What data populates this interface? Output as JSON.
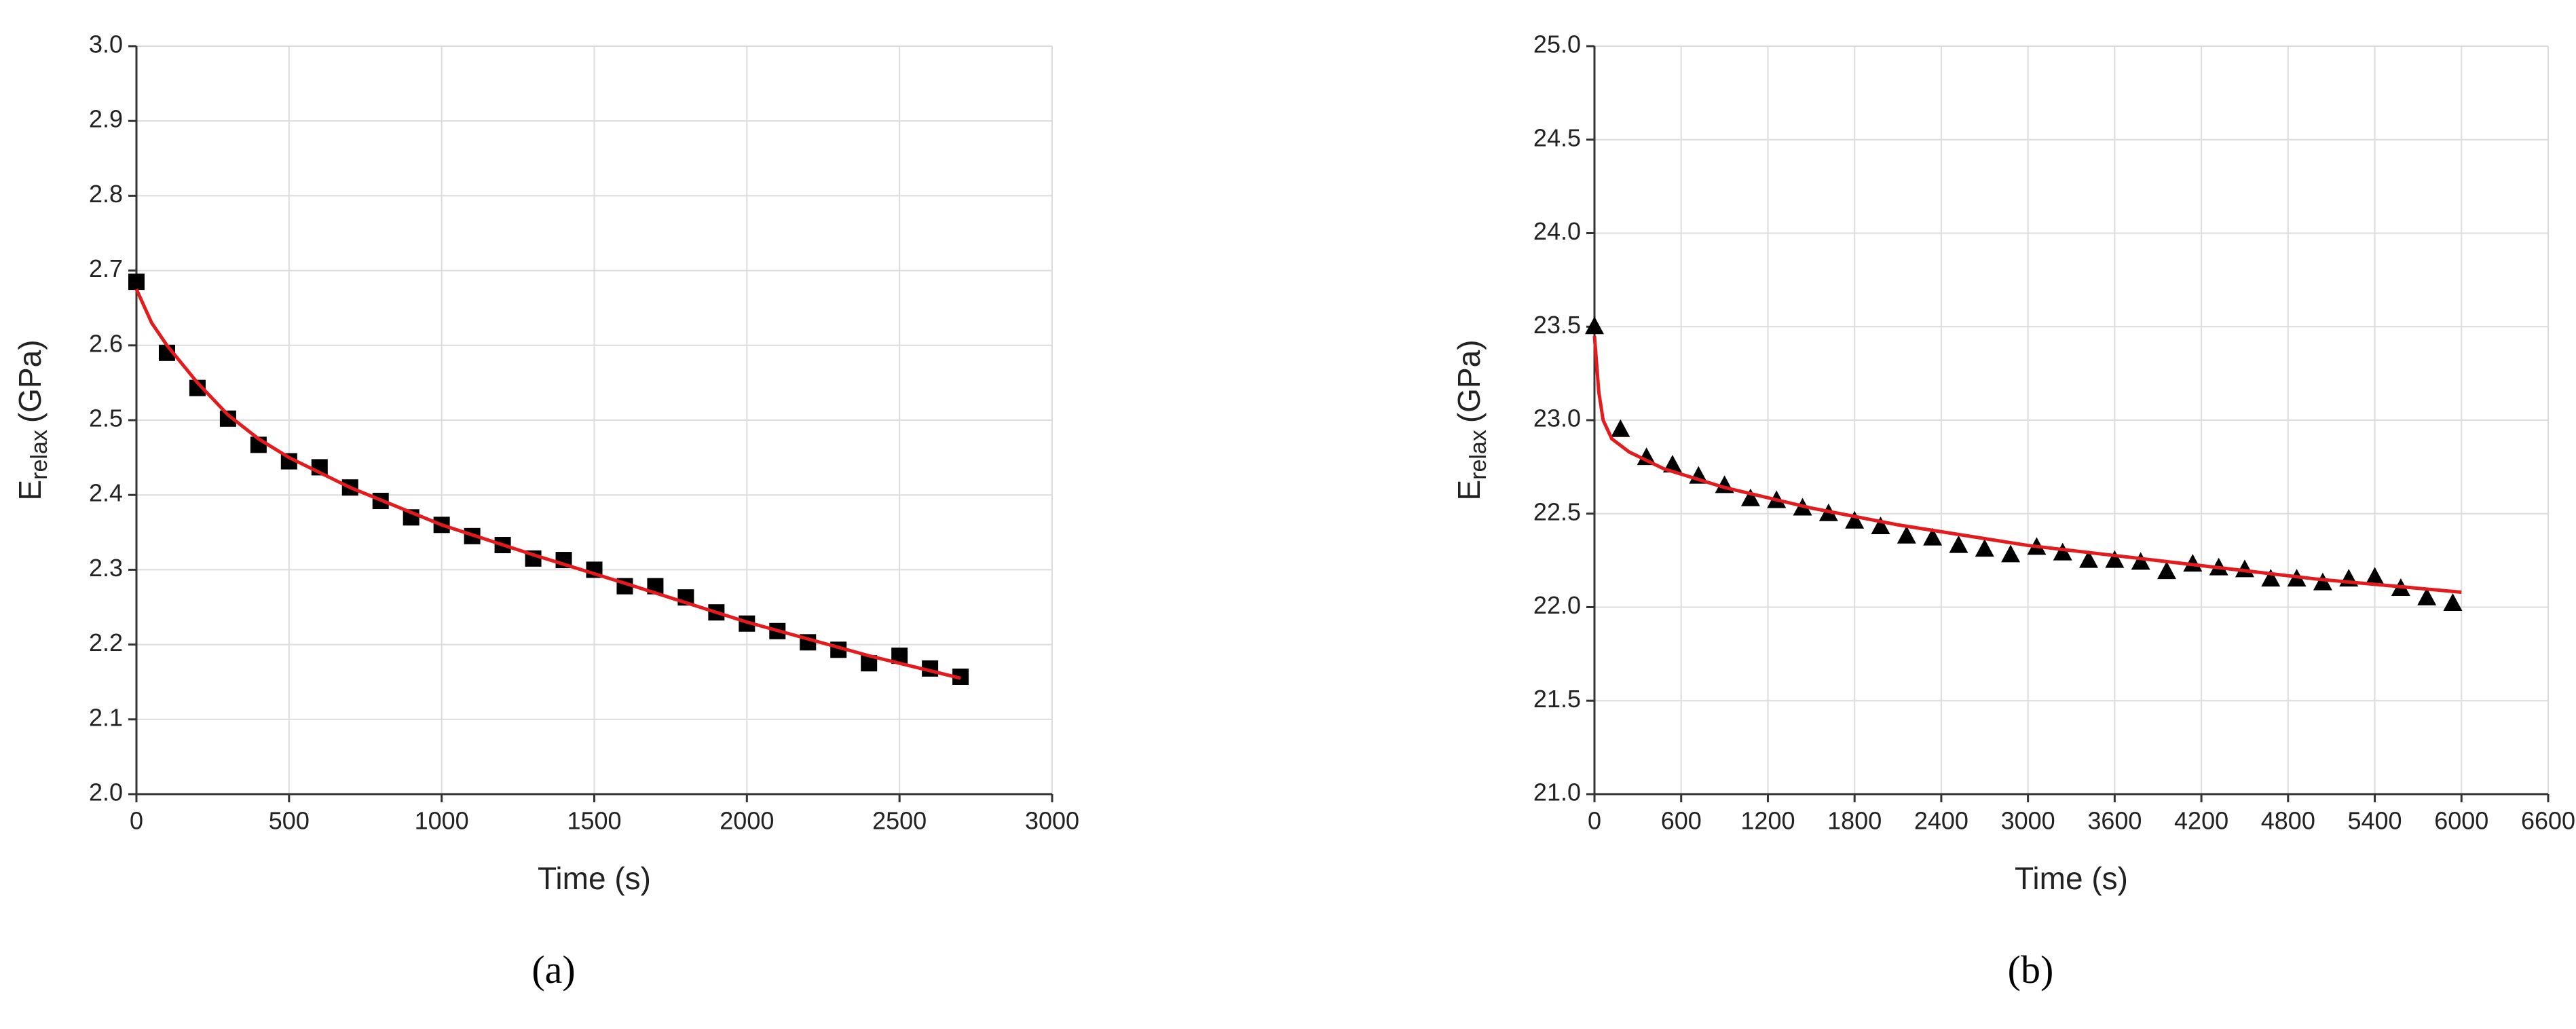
{
  "chart_data": [
    {
      "type": "scatter",
      "xlabel": "Time (s)",
      "ylabel": {
        "base": "E",
        "subscript": "relax",
        "unit": "(GPa)"
      },
      "panel_label": "(a)",
      "xlim": [
        0,
        3000
      ],
      "xticks": [
        0,
        500,
        1000,
        1500,
        2000,
        2500,
        3000
      ],
      "ylim": [
        2.0,
        3.0
      ],
      "yticks": [
        {
          "value": 2.0,
          "label": "2.0"
        },
        2.1,
        2.2,
        2.3,
        2.4,
        2.5,
        2.6,
        2.7,
        2.8,
        2.9,
        {
          "value": 3.0,
          "label": "3.0"
        }
      ],
      "grid": true,
      "series": [
        {
          "type": "scatter",
          "marker": "square",
          "color": "#000000",
          "x": [
            0,
            100,
            200,
            300,
            400,
            500,
            600,
            700,
            800,
            900,
            1000,
            1100,
            1200,
            1300,
            1400,
            1500,
            1600,
            1700,
            1800,
            1900,
            2000,
            2100,
            2200,
            2300,
            2400,
            2500,
            2600,
            2700
          ],
          "values": [
            2.685,
            2.59,
            2.543,
            2.502,
            2.467,
            2.445,
            2.437,
            2.41,
            2.392,
            2.37,
            2.36,
            2.345,
            2.333,
            2.315,
            2.313,
            2.3,
            2.278,
            2.278,
            2.263,
            2.243,
            2.228,
            2.218,
            2.203,
            2.193,
            2.175,
            2.185,
            2.168,
            2.157
          ]
        },
        {
          "type": "line",
          "color": "#e41a1c",
          "x": [
            0,
            50,
            100,
            200,
            300,
            400,
            500,
            700,
            1000,
            1300,
            1600,
            2000,
            2400,
            2700
          ],
          "values": [
            2.675,
            2.63,
            2.6,
            2.55,
            2.507,
            2.475,
            2.45,
            2.41,
            2.36,
            2.32,
            2.282,
            2.23,
            2.185,
            2.155
          ]
        }
      ]
    },
    {
      "type": "scatter",
      "xlabel": "Time (s)",
      "ylabel": {
        "base": "E",
        "subscript": "relax",
        "unit": "(GPa)"
      },
      "panel_label": "(b)",
      "xlim": [
        0,
        6600
      ],
      "xticks": [
        0,
        600,
        1200,
        1800,
        2400,
        3000,
        3600,
        4200,
        4800,
        5400,
        6000,
        6600
      ],
      "ylim": [
        21.0,
        25.0
      ],
      "yticks": [
        {
          "value": 21.0,
          "label": "21.0"
        },
        21.5,
        {
          "value": 22.0,
          "label": "22.0"
        },
        22.5,
        {
          "value": 23.0,
          "label": "23.0"
        },
        23.5,
        {
          "value": 24.0,
          "label": "24.0"
        },
        24.5,
        {
          "value": 25.0,
          "label": "25.0"
        }
      ],
      "grid": true,
      "series": [
        {
          "type": "scatter",
          "marker": "triangle",
          "color": "#000000",
          "x": [
            0,
            180,
            360,
            540,
            720,
            900,
            1080,
            1260,
            1440,
            1620,
            1800,
            1980,
            2160,
            2340,
            2520,
            2700,
            2880,
            3060,
            3240,
            3420,
            3600,
            3780,
            3960,
            4140,
            4320,
            4500,
            4680,
            4860,
            5040,
            5220,
            5400,
            5580,
            5760,
            5940
          ],
          "values": [
            23.5,
            22.95,
            22.8,
            22.76,
            22.7,
            22.65,
            22.58,
            22.57,
            22.53,
            22.5,
            22.46,
            22.43,
            22.38,
            22.37,
            22.33,
            22.31,
            22.28,
            22.32,
            22.29,
            22.25,
            22.25,
            22.24,
            22.19,
            22.23,
            22.21,
            22.2,
            22.15,
            22.15,
            22.13,
            22.15,
            22.16,
            22.1,
            22.05,
            22.02
          ]
        },
        {
          "type": "line",
          "color": "#e41a1c",
          "x": [
            0,
            30,
            60,
            120,
            240,
            480,
            900,
            1500,
            2100,
            3000,
            4000,
            5000,
            6000
          ],
          "values": [
            23.45,
            23.15,
            23.0,
            22.9,
            22.83,
            22.74,
            22.64,
            22.53,
            22.44,
            22.33,
            22.24,
            22.15,
            22.08
          ]
        }
      ]
    }
  ]
}
